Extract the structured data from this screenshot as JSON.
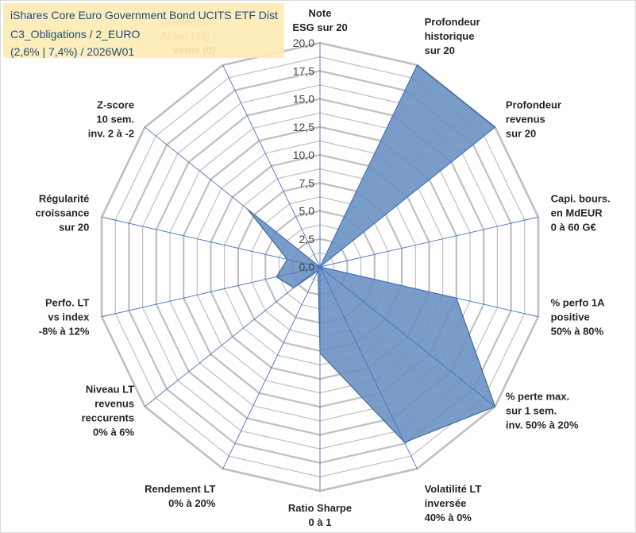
{
  "title_lines": [
    "iShares Core Euro Government Bond UCITS ETF Dist",
    "C3_Obligations / 2_EURO",
    "(2,6% | 7,4%) / 2026W01"
  ],
  "chart_data": {
    "type": "radar",
    "title": "iShares Core Euro Government Bond UCITS ETF Dist - C3_Obligations / 2_EURO - (2,6% | 7,4%) / 2026W01",
    "rlim": [
      0,
      20
    ],
    "ticks": [
      0,
      2.5,
      5,
      7.5,
      10,
      12.5,
      15,
      17.5,
      20
    ],
    "tick_labels": [
      "0,0",
      "2,5",
      "5,0",
      "7,5",
      "10,0",
      "12,5",
      "15,0",
      "17,5",
      "20,0"
    ],
    "grid": true,
    "categories": [
      "Note ESG sur 20",
      "Profondeur historique sur 20",
      "Profondeur revenus sur 20",
      "Capi. bours. en MdEUR 0 à 60 G€",
      "% perfo 1A positive 50% à 80%",
      "% perte max. sur 1 sem. inv. 50% à 20%",
      "Volatilité LT inversée 40% à 0%",
      "Ratio Sharpe 0 à 1",
      "Rendement LT 0% à 20%",
      "Niveau LT revenus reccurents 0% à 6%",
      "Perfo. LT vs index -8% à 12%",
      "Régularité croissance sur 20",
      "Z-score 10 sem. inv. 2 à -2",
      "Momentum Achat (20) / Vente (0)"
    ],
    "category_lines": [
      [
        "Note",
        "ESG sur 20"
      ],
      [
        "Profondeur",
        "historique",
        "sur 20"
      ],
      [
        "Profondeur",
        "revenus",
        "sur 20"
      ],
      [
        "Capi. bours.",
        "en MdEUR",
        "0 à 60 G€"
      ],
      [
        "% perfo 1A",
        "positive",
        "50% à 80%"
      ],
      [
        "% perte max.",
        "sur 1 sem.",
        "inv. 50% à 20%"
      ],
      [
        "Volatilité LT",
        "inversée",
        "40% à 0%"
      ],
      [
        "Ratio Sharpe",
        "0 à 1"
      ],
      [
        "Rendement LT",
        "0% à 20%"
      ],
      [
        "Niveau LT",
        "revenus",
        "reccurents",
        "0% à 6%"
      ],
      [
        "Perfo. LT",
        "vs index",
        "-8% à 12%"
      ],
      [
        "Régularité",
        "croissance",
        "sur 20"
      ],
      [
        "Z-score",
        "10 sem.",
        "inv. 2 à -2"
      ],
      [
        "Momentum",
        "Achat (20) /",
        "Vente (0)"
      ]
    ],
    "series": [
      {
        "name": "iShares Core Euro Government Bond UCITS ETF Dist",
        "values": [
          0,
          20,
          20,
          0,
          12.5,
          20,
          17.4,
          7.7,
          0.4,
          3.0,
          4.0,
          3.0,
          8.3,
          0
        ],
        "fill": "#6a91c2",
        "stroke": "#2f5b94"
      }
    ]
  },
  "colors": {
    "grid": "#bfbfbf",
    "spoke": "#4472c4",
    "title_box": "#fdebb4",
    "title_text": "#1f4e79"
  }
}
